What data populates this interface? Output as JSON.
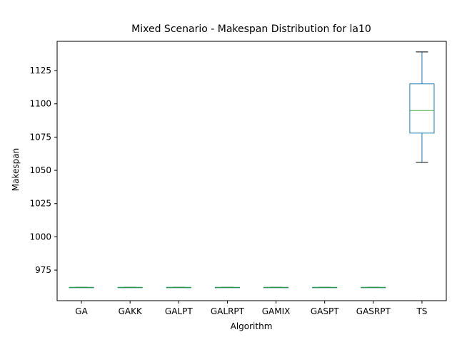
{
  "chart_data": {
    "type": "box",
    "title": "Mixed Scenario - Makespan Distribution for la10",
    "xlabel": "Algorithm",
    "ylabel": "Makespan",
    "ylim": [
      952,
      1147
    ],
    "yticks": [
      975,
      1000,
      1025,
      1050,
      1075,
      1100,
      1125
    ],
    "grid": false,
    "categories": [
      "GA",
      "GAKK",
      "GALPT",
      "GALRPT",
      "GAMIX",
      "GASPT",
      "GASRPT",
      "TS"
    ],
    "boxes": [
      {
        "category": "GA",
        "whisker_low": 962,
        "q1": 962,
        "median": 962,
        "q3": 962,
        "whisker_high": 962
      },
      {
        "category": "GAKK",
        "whisker_low": 962,
        "q1": 962,
        "median": 962,
        "q3": 962,
        "whisker_high": 962
      },
      {
        "category": "GALPT",
        "whisker_low": 962,
        "q1": 962,
        "median": 962,
        "q3": 962,
        "whisker_high": 962
      },
      {
        "category": "GALRPT",
        "whisker_low": 962,
        "q1": 962,
        "median": 962,
        "q3": 962,
        "whisker_high": 962
      },
      {
        "category": "GAMIX",
        "whisker_low": 962,
        "q1": 962,
        "median": 962,
        "q3": 962,
        "whisker_high": 962
      },
      {
        "category": "GASPT",
        "whisker_low": 962,
        "q1": 962,
        "median": 962,
        "q3": 962,
        "whisker_high": 962
      },
      {
        "category": "GASRPT",
        "whisker_low": 962,
        "q1": 962,
        "median": 962,
        "q3": 962,
        "whisker_high": 962
      },
      {
        "category": "TS",
        "whisker_low": 1056,
        "q1": 1078,
        "median": 1095,
        "q3": 1115,
        "whisker_high": 1139
      }
    ],
    "colors": {
      "box": "#1f77b4",
      "median": "#2ca02c",
      "cap": "#000000",
      "axis": "#000000"
    }
  }
}
